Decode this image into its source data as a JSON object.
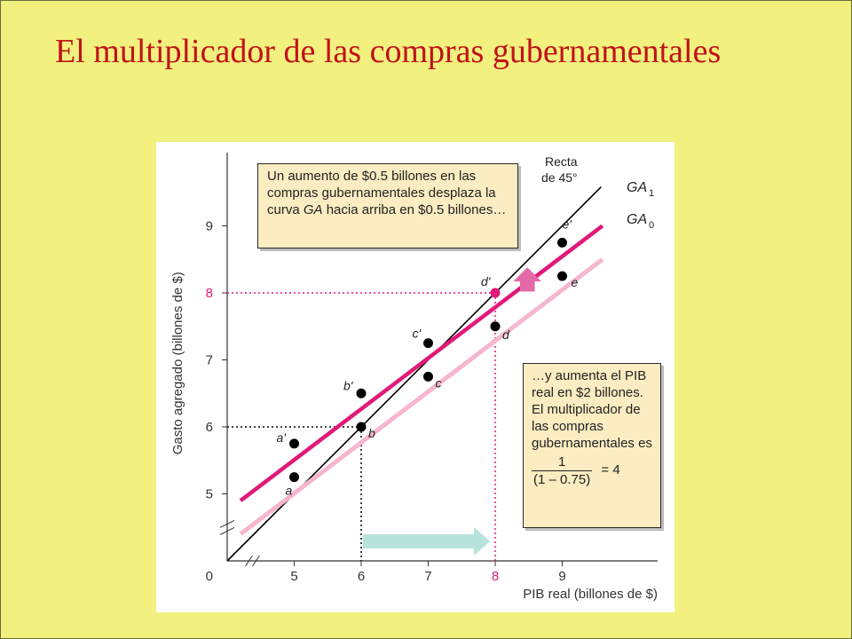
{
  "slide": {
    "title": "El multiplicador de las compras gubernamentales"
  },
  "colors": {
    "background": "#f2f07e",
    "title": "#c0121a",
    "ga1": "#e0197a",
    "ga0": "#f6b6cf",
    "line45": "#000000",
    "arrow_right": "#b7e3dc",
    "arrow_up": "#e36aa6",
    "callout_fill": "#fbecc2"
  },
  "chart_data": {
    "type": "line",
    "xlabel": "PIB real (billones de $)",
    "ylabel": "Gasto agregado (billones de $)",
    "x_ticks": [
      5,
      6,
      7,
      8,
      9
    ],
    "y_ticks": [
      5,
      6,
      7,
      8,
      9
    ],
    "origin_label": "0",
    "axis_break": true,
    "xlim": [
      4,
      10.1
    ],
    "ylim": [
      4,
      10.4
    ],
    "highlight_ticks": {
      "x": "8",
      "y": "8"
    },
    "series": [
      {
        "name": "GA",
        "subscript": "1",
        "color": "#e0197a",
        "line": [
          [
            4.2,
            4.9
          ],
          [
            9.6,
            9.0
          ]
        ],
        "points": [
          {
            "x": 5,
            "y": 5.75,
            "label": "a'"
          },
          {
            "x": 6,
            "y": 6.5,
            "label": "b'"
          },
          {
            "x": 7,
            "y": 7.25,
            "label": "c'"
          },
          {
            "x": 8,
            "y": 8,
            "label": "d'"
          },
          {
            "x": 9,
            "y": 8.75,
            "label": "e'"
          }
        ]
      },
      {
        "name": "GA",
        "subscript": "0",
        "color": "#f6b6cf",
        "line": [
          [
            4.2,
            4.4
          ],
          [
            9.6,
            8.5
          ]
        ],
        "points": [
          {
            "x": 5,
            "y": 5.25,
            "label": "a"
          },
          {
            "x": 6,
            "y": 6.0,
            "label": "b"
          },
          {
            "x": 7,
            "y": 6.75,
            "label": "c"
          },
          {
            "x": 8,
            "y": 7.5,
            "label": "d"
          },
          {
            "x": 9,
            "y": 8.25,
            "label": "e"
          }
        ]
      }
    ],
    "line45": {
      "label_line1": "Recta",
      "label_line2": "de 45°"
    },
    "guides": [
      {
        "x": 6,
        "y": 6,
        "style": "dotted",
        "color": "#000000"
      },
      {
        "x": 8,
        "y": 8,
        "style": "dotted",
        "color": "#e0197a"
      }
    ],
    "shift_arrow_right": {
      "from_x": 6,
      "to_x": 8
    },
    "shift_arrow_up": true
  },
  "annotations": {
    "callout_1": "Un aumento de $0.5 billones en las compras gubernamentales desplaza la curva GA hacia arriba en $0.5 billones…",
    "callout_1_parts": {
      "before": "Un aumento de $0.5 billones en las compras gubernamentales desplaza la curva ",
      "italic": "GA",
      "after": " hacia arriba en $0.5 billones…"
    },
    "callout_2": "…y aumenta el PIB real en $2 billones. El multiplicador de las compras gubernamentales es",
    "formula": {
      "numerator": "1",
      "denominator": "(1 – 0.75)",
      "result": "= 4"
    }
  }
}
